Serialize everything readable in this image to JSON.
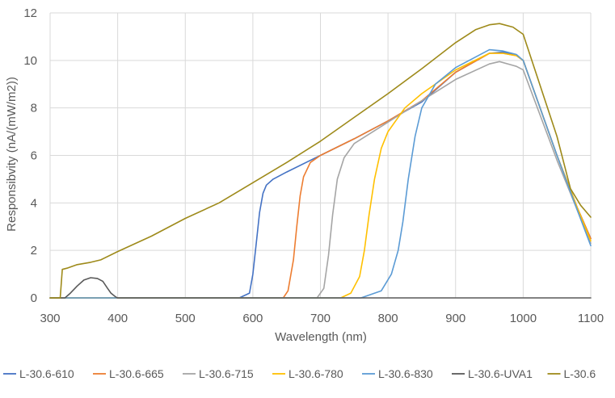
{
  "chart_data": {
    "type": "line",
    "title": "",
    "xlabel": "Wavelength (nm)",
    "ylabel": "Responsibvity (nA/(mW/m2))",
    "xlim": [
      300,
      1100
    ],
    "ylim": [
      0,
      12
    ],
    "xticks": [
      300,
      400,
      500,
      600,
      700,
      800,
      900,
      1000,
      1100
    ],
    "yticks": [
      0,
      2,
      4,
      6,
      8,
      10,
      12
    ],
    "grid": true,
    "legend_position": "bottom",
    "series": [
      {
        "name": "L-30.6-610",
        "color": "#4472C4",
        "points": [
          [
            300,
            0
          ],
          [
            580,
            0
          ],
          [
            595,
            0.2
          ],
          [
            600,
            1.0
          ],
          [
            605,
            2.3
          ],
          [
            610,
            3.6
          ],
          [
            615,
            4.4
          ],
          [
            620,
            4.75
          ],
          [
            630,
            5.0
          ],
          [
            650,
            5.3
          ],
          [
            700,
            6.0
          ],
          [
            750,
            6.7
          ],
          [
            800,
            7.45
          ],
          [
            850,
            8.25
          ],
          [
            900,
            9.5
          ],
          [
            950,
            10.3
          ],
          [
            970,
            10.35
          ],
          [
            990,
            10.2
          ],
          [
            1000,
            10.0
          ],
          [
            1050,
            6.0
          ],
          [
            1080,
            3.8
          ],
          [
            1100,
            2.5
          ]
        ]
      },
      {
        "name": "L-30.6-665",
        "color": "#ED7D31",
        "points": [
          [
            300,
            0
          ],
          [
            645,
            0
          ],
          [
            652,
            0.3
          ],
          [
            660,
            1.6
          ],
          [
            665,
            3.0
          ],
          [
            670,
            4.3
          ],
          [
            675,
            5.1
          ],
          [
            685,
            5.7
          ],
          [
            700,
            6.0
          ],
          [
            750,
            6.7
          ],
          [
            800,
            7.45
          ],
          [
            850,
            8.3
          ],
          [
            900,
            9.5
          ],
          [
            950,
            10.3
          ],
          [
            970,
            10.3
          ],
          [
            990,
            10.2
          ],
          [
            1000,
            10.0
          ],
          [
            1050,
            6.0
          ],
          [
            1080,
            3.8
          ],
          [
            1100,
            2.5
          ]
        ]
      },
      {
        "name": "L-30.6-715",
        "color": "#A5A5A5",
        "points": [
          [
            300,
            0
          ],
          [
            695,
            0
          ],
          [
            705,
            0.4
          ],
          [
            712,
            1.8
          ],
          [
            718,
            3.5
          ],
          [
            725,
            5.0
          ],
          [
            735,
            5.9
          ],
          [
            750,
            6.5
          ],
          [
            800,
            7.4
          ],
          [
            850,
            8.3
          ],
          [
            900,
            9.2
          ],
          [
            950,
            9.85
          ],
          [
            965,
            9.95
          ],
          [
            990,
            9.75
          ],
          [
            1000,
            9.6
          ],
          [
            1050,
            5.8
          ],
          [
            1080,
            3.7
          ],
          [
            1100,
            2.3
          ]
        ]
      },
      {
        "name": "L-30.6-780",
        "color": "#FFC000",
        "points": [
          [
            300,
            0
          ],
          [
            730,
            0
          ],
          [
            745,
            0.2
          ],
          [
            758,
            0.9
          ],
          [
            765,
            2.0
          ],
          [
            772,
            3.5
          ],
          [
            780,
            5.0
          ],
          [
            790,
            6.3
          ],
          [
            800,
            7.0
          ],
          [
            825,
            8.0
          ],
          [
            850,
            8.6
          ],
          [
            900,
            9.6
          ],
          [
            950,
            10.3
          ],
          [
            970,
            10.3
          ],
          [
            990,
            10.2
          ],
          [
            1000,
            10.0
          ],
          [
            1050,
            6.0
          ],
          [
            1080,
            3.8
          ],
          [
            1100,
            2.4
          ]
        ]
      },
      {
        "name": "L-30.6-830",
        "color": "#5B9BD5",
        "points": [
          [
            300,
            0
          ],
          [
            760,
            0
          ],
          [
            790,
            0.3
          ],
          [
            805,
            1.0
          ],
          [
            815,
            2.0
          ],
          [
            822,
            3.2
          ],
          [
            830,
            5.0
          ],
          [
            840,
            6.8
          ],
          [
            850,
            8.0
          ],
          [
            870,
            9.0
          ],
          [
            900,
            9.7
          ],
          [
            950,
            10.45
          ],
          [
            970,
            10.4
          ],
          [
            990,
            10.25
          ],
          [
            1000,
            10.0
          ],
          [
            1050,
            6.0
          ],
          [
            1080,
            3.7
          ],
          [
            1100,
            2.2
          ]
        ]
      },
      {
        "name": "L-30.6-UVA1",
        "color": "#595959",
        "points": [
          [
            300,
            0
          ],
          [
            322,
            0
          ],
          [
            330,
            0.2
          ],
          [
            340,
            0.5
          ],
          [
            350,
            0.75
          ],
          [
            360,
            0.85
          ],
          [
            370,
            0.82
          ],
          [
            378,
            0.7
          ],
          [
            385,
            0.4
          ],
          [
            390,
            0.2
          ],
          [
            397,
            0.04
          ],
          [
            400,
            0
          ],
          [
            1100,
            0
          ]
        ]
      },
      {
        "name": "L-30.6",
        "color": "#9E8A1A",
        "points": [
          [
            300,
            0
          ],
          [
            315,
            0
          ],
          [
            318,
            1.2
          ],
          [
            325,
            1.25
          ],
          [
            340,
            1.4
          ],
          [
            360,
            1.5
          ],
          [
            375,
            1.6
          ],
          [
            400,
            1.95
          ],
          [
            450,
            2.6
          ],
          [
            500,
            3.35
          ],
          [
            550,
            4.0
          ],
          [
            600,
            4.85
          ],
          [
            650,
            5.7
          ],
          [
            700,
            6.6
          ],
          [
            750,
            7.6
          ],
          [
            800,
            8.6
          ],
          [
            850,
            9.65
          ],
          [
            900,
            10.75
          ],
          [
            930,
            11.3
          ],
          [
            950,
            11.5
          ],
          [
            965,
            11.55
          ],
          [
            985,
            11.4
          ],
          [
            1000,
            11.1
          ],
          [
            1050,
            6.8
          ],
          [
            1070,
            4.6
          ],
          [
            1085,
            3.9
          ],
          [
            1100,
            3.4
          ]
        ]
      }
    ]
  }
}
